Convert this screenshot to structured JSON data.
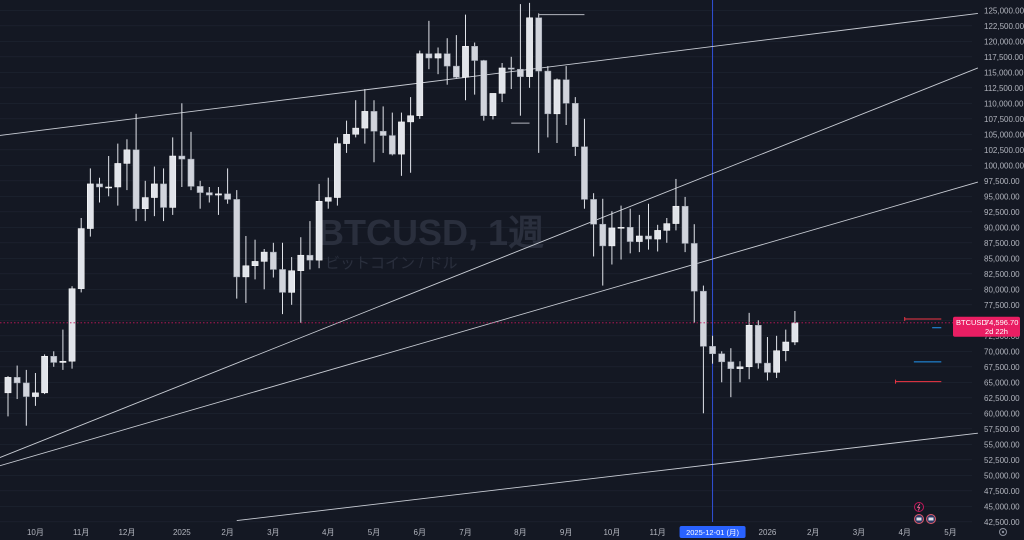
{
  "chart_data": {
    "type": "candlestick",
    "symbol": "BTCUSD",
    "watermark": {
      "title": "BTCUSD, 1週",
      "subtitle": "ビットコイン / ドル"
    },
    "ylim": [
      41500,
      126500
    ],
    "y_ticks": [
      "125,000.00",
      "122,500.00",
      "120,000.00",
      "117,500.00",
      "115,000.00",
      "112,500.00",
      "110,000.00",
      "107,500.00",
      "105,000.00",
      "102,500.00",
      "100,000.00",
      "97,500.00",
      "95,000.00",
      "92,500.00",
      "90,000.00",
      "87,500.00",
      "85,000.00",
      "82,500.00",
      "80,000.00",
      "77,500.00",
      "75,000.00",
      "72,500.00",
      "70,000.00",
      "67,500.00",
      "65,000.00",
      "62,500.00",
      "60,000.00",
      "57,500.00",
      "55,000.00",
      "52,500.00",
      "50,000.00",
      "47,500.00",
      "45,000.00",
      "42,500.00"
    ],
    "x_labels": [
      "10月",
      "11月",
      "12月",
      "2025",
      "2月",
      "3月",
      "4月",
      "5月",
      "6月",
      "7月",
      "8月",
      "9月",
      "10月",
      "11月",
      "2026",
      "2月",
      "3月",
      "4月",
      "5月"
    ],
    "x_label_index": [
      3,
      8,
      13,
      19,
      24,
      29,
      35,
      40,
      45,
      50,
      56,
      61,
      66,
      71,
      83,
      88,
      93,
      98,
      103
    ],
    "crosshair_label": "2025-12-01 (月)",
    "crosshair_index": 77,
    "last_price": {
      "symbol": "BTCUSD",
      "value": "74,596.70",
      "countdown": "2d 22h",
      "price": 74596.7
    },
    "candles": [
      [
        63300,
        66000,
        59500,
        65800
      ],
      [
        65800,
        67700,
        62300,
        64900
      ],
      [
        64900,
        67000,
        58000,
        62700
      ],
      [
        62700,
        66500,
        61200,
        63300
      ],
      [
        63300,
        69500,
        63100,
        69200
      ],
      [
        69200,
        70000,
        67500,
        68200
      ],
      [
        68200,
        73500,
        67000,
        68400
      ],
      [
        68400,
        80500,
        67200,
        80100
      ],
      [
        80100,
        91500,
        79500,
        89800
      ],
      [
        89800,
        99500,
        88500,
        97000
      ],
      [
        97000,
        98000,
        94000,
        96500
      ],
      [
        96500,
        101500,
        95000,
        96500
      ],
      [
        96500,
        103500,
        93500,
        100300
      ],
      [
        100300,
        104200,
        96000,
        102500
      ],
      [
        102500,
        108300,
        91000,
        93000
      ],
      [
        93000,
        97500,
        91000,
        94800
      ],
      [
        94800,
        99800,
        91800,
        97000
      ],
      [
        97000,
        99500,
        91000,
        93200
      ],
      [
        93200,
        104500,
        92000,
        101500
      ],
      [
        101500,
        110000,
        96500,
        101000
      ],
      [
        101000,
        105400,
        96000,
        96600
      ],
      [
        96600,
        97500,
        93000,
        95600
      ],
      [
        95600,
        96500,
        94000,
        95200
      ],
      [
        95200,
        96500,
        92000,
        95400
      ],
      [
        95400,
        99500,
        93800,
        94500
      ],
      [
        94500,
        96000,
        78500,
        82000
      ],
      [
        82000,
        88600,
        77800,
        83800
      ],
      [
        83800,
        88000,
        81600,
        84500
      ],
      [
        84500,
        86500,
        80000,
        86000
      ],
      [
        86000,
        87500,
        81900,
        83200
      ],
      [
        83200,
        87500,
        76000,
        79500
      ],
      [
        79500,
        85200,
        77500,
        83000
      ],
      [
        83000,
        88400,
        74600,
        85500
      ],
      [
        85500,
        91000,
        83200,
        84700
      ],
      [
        84700,
        97000,
        83400,
        94200
      ],
      [
        94200,
        98000,
        93000,
        94800
      ],
      [
        94800,
        104500,
        93500,
        103500
      ],
      [
        103500,
        107200,
        102000,
        105000
      ],
      [
        105000,
        110500,
        104500,
        106000
      ],
      [
        106000,
        112300,
        103500,
        108700
      ],
      [
        108700,
        110500,
        100500,
        105500
      ],
      [
        105500,
        109500,
        102000,
        104800
      ],
      [
        104800,
        108500,
        101600,
        101800
      ],
      [
        101800,
        108500,
        98300,
        107000
      ],
      [
        107000,
        111000,
        98800,
        108000
      ],
      [
        108000,
        118500,
        107500,
        118000
      ],
      [
        118000,
        123300,
        115500,
        117300
      ],
      [
        117300,
        119000,
        114700,
        118000
      ],
      [
        118000,
        120500,
        113000,
        116000
      ],
      [
        116000,
        121000,
        114000,
        114200
      ],
      [
        114200,
        124300,
        110500,
        119200
      ],
      [
        119200,
        119800,
        111400,
        116900
      ],
      [
        116900,
        117000,
        107200,
        108000
      ],
      [
        108000,
        111000,
        107400,
        111600
      ],
      [
        111600,
        116500,
        110200,
        115700
      ],
      [
        115700,
        117500,
        112300,
        115500
      ],
      [
        115500,
        126000,
        108000,
        114300
      ],
      [
        114300,
        126200,
        112500,
        123800
      ],
      [
        123800,
        124500,
        102000,
        115200
      ],
      [
        115200,
        116000,
        104500,
        108300
      ],
      [
        108300,
        114000,
        103600,
        113800
      ],
      [
        113800,
        116000,
        106500,
        110000
      ],
      [
        110000,
        111000,
        101500,
        103000
      ],
      [
        103000,
        107500,
        93000,
        94500
      ],
      [
        94500,
        95500,
        85300,
        90500
      ],
      [
        90500,
        94600,
        80600,
        87000
      ],
      [
        87000,
        92600,
        84000,
        89900
      ],
      [
        89900,
        93500,
        84800,
        90000
      ],
      [
        90000,
        93000,
        85800,
        87700
      ],
      [
        87700,
        92000,
        86000,
        88600
      ],
      [
        88600,
        93800,
        86400,
        88100
      ],
      [
        88100,
        90400,
        86100,
        89500
      ],
      [
        89500,
        91500,
        87500,
        90600
      ],
      [
        90600,
        97800,
        89500,
        93400
      ],
      [
        93400,
        94900,
        86000,
        87400
      ],
      [
        87400,
        90500,
        74600,
        79700
      ],
      [
        79700,
        80600,
        60000,
        70800
      ],
      [
        70800,
        72500,
        68000,
        69600
      ],
      [
        69600,
        70000,
        65000,
        68300
      ],
      [
        68300,
        70500,
        62600,
        67200
      ],
      [
        67200,
        68400,
        65000,
        67500
      ],
      [
        67500,
        76200,
        65500,
        74200
      ],
      [
        74200,
        75000,
        67200,
        68100
      ],
      [
        68100,
        72300,
        65300,
        66600
      ],
      [
        66600,
        72500,
        65700,
        70100
      ],
      [
        70100,
        73500,
        68400,
        71500
      ],
      [
        71500,
        76500,
        71000,
        74600
      ]
    ],
    "trendlines": [
      {
        "from": [
          -1,
          104800
        ],
        "to": [
          106,
          124500
        ]
      },
      {
        "from": [
          -1,
          52800
        ],
        "to": [
          106,
          115700
        ]
      },
      {
        "from": [
          -1,
          51500
        ],
        "to": [
          106,
          97300
        ]
      },
      {
        "from": [
          25,
          42700
        ],
        "to": [
          106,
          56800
        ]
      }
    ],
    "h_marks": [
      {
        "from": 58,
        "to": 63,
        "value": 124300,
        "color": "#b2b5be"
      },
      {
        "from": 55,
        "to": 57,
        "value": 106800,
        "color": "#b2b5be"
      },
      {
        "from": 98,
        "to": 102,
        "value": 75200,
        "color": "#f23645"
      },
      {
        "from": 97,
        "to": 102,
        "value": 65100,
        "color": "#f23645"
      },
      {
        "from": 99,
        "to": 102,
        "value": 68300,
        "color": "#2196f3"
      },
      {
        "from": 101,
        "to": 102,
        "value": 73800,
        "color": "#2196f3"
      }
    ],
    "colors": {
      "background": "#141823",
      "candle_up": "#e1e4ea",
      "candle_down": "#d1d4dc",
      "wick": "#e1e4ea",
      "trendline": "#c8ccd4",
      "grid": "#1f2433",
      "crosshair": "#3050d8",
      "crosshair_label_bg": "#2962ff",
      "price_line": "#c2185b",
      "price_badge": "#e91e63"
    }
  }
}
